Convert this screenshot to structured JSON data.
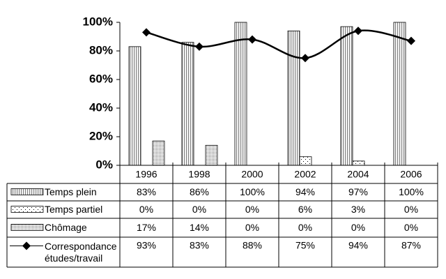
{
  "chart_data": {
    "type": "bar",
    "categories": [
      "1996",
      "1998",
      "2000",
      "2002",
      "2004",
      "2006"
    ],
    "series": [
      {
        "name": "Temps plein",
        "color": "#808080",
        "pattern": "stripes",
        "values": [
          83,
          86,
          100,
          94,
          97,
          100
        ],
        "value_labels": [
          "83%",
          "86%",
          "100%",
          "94%",
          "97%",
          "100%"
        ]
      },
      {
        "name": "Temps partiel",
        "color": "#000000",
        "pattern": "sparse-dots",
        "values": [
          0,
          0,
          0,
          6,
          3,
          0
        ],
        "value_labels": [
          "0%",
          "0%",
          "0%",
          "6%",
          "3%",
          "0%"
        ]
      },
      {
        "name": "Chômage",
        "color": "#000000",
        "pattern": "dense-dots",
        "values": [
          17,
          14,
          0,
          0,
          0,
          0
        ],
        "value_labels": [
          "17%",
          "14%",
          "0%",
          "0%",
          "0%",
          "0%"
        ]
      },
      {
        "name": "Correspondance études/travail",
        "type": "line",
        "color": "#000000",
        "values": [
          93,
          83,
          88,
          75,
          94,
          87
        ],
        "value_labels": [
          "93%",
          "83%",
          "88%",
          "75%",
          "94%",
          "87%"
        ]
      }
    ],
    "ylim": [
      0,
      100
    ],
    "yticks": [
      {
        "value": 0,
        "label": "0%"
      },
      {
        "value": 20,
        "label": "20%"
      },
      {
        "value": 40,
        "label": "40%"
      },
      {
        "value": 60,
        "label": "60%"
      },
      {
        "value": 80,
        "label": "80%"
      },
      {
        "value": 100,
        "label": "100%"
      }
    ],
    "legend": "table"
  }
}
